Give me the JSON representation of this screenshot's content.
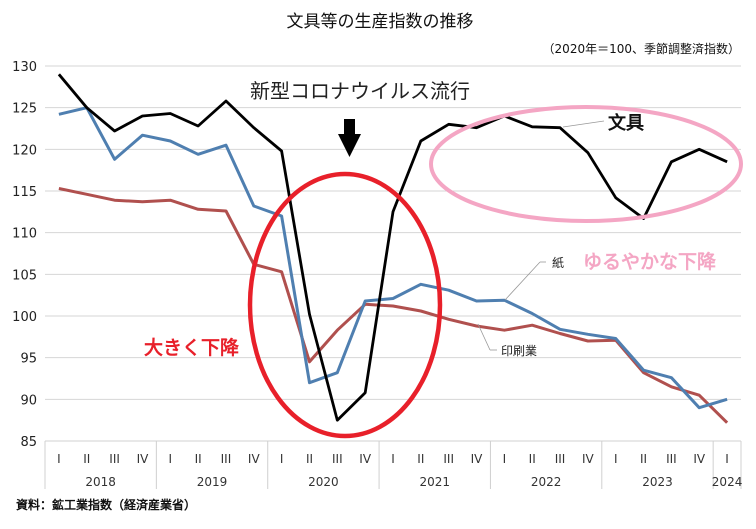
{
  "chart_data": {
    "type": "line",
    "title": "文具等の生産指数の推移",
    "subtitle": "（2020年＝100、季節調整済指数）",
    "xlabel": "",
    "ylabel": "",
    "ylim": [
      85,
      130
    ],
    "yticks": [
      130,
      125,
      120,
      115,
      110,
      105,
      100,
      95,
      90,
      85
    ],
    "grid": true,
    "quarters": [
      "I",
      "II",
      "III",
      "IV",
      "I",
      "II",
      "III",
      "IV",
      "I",
      "II",
      "III",
      "IV",
      "I",
      "II",
      "III",
      "IV",
      "I",
      "II",
      "III",
      "IV",
      "I",
      "II",
      "III",
      "IV",
      "I"
    ],
    "years": [
      {
        "label": "2018",
        "count": 4
      },
      {
        "label": "2019",
        "count": 4
      },
      {
        "label": "2020",
        "count": 4
      },
      {
        "label": "2021",
        "count": 4
      },
      {
        "label": "2022",
        "count": 4
      },
      {
        "label": "2023",
        "count": 4
      },
      {
        "label": "2024",
        "count": 1
      }
    ],
    "series": [
      {
        "name": "文具",
        "color": "#000000",
        "values": [
          129.0,
          125.0,
          122.2,
          124.0,
          124.3,
          122.8,
          125.8,
          122.6,
          119.8,
          100.2,
          87.5,
          90.8,
          112.5,
          121.0,
          123.0,
          122.6,
          124.0,
          122.7,
          122.6,
          119.6,
          114.2,
          111.7,
          118.5,
          120.0,
          118.5
        ]
      },
      {
        "name": "紙",
        "color": "#4f7fb0",
        "values": [
          124.2,
          125.0,
          118.8,
          121.7,
          121.0,
          119.4,
          120.5,
          113.2,
          112.0,
          92.0,
          93.2,
          101.8,
          102.1,
          103.8,
          103.1,
          101.8,
          101.9,
          100.3,
          98.4,
          97.8,
          97.3,
          93.5,
          92.6,
          89.0,
          90.0
        ]
      },
      {
        "name": "印刷業",
        "color": "#b0504e",
        "values": [
          115.3,
          114.6,
          113.9,
          113.7,
          113.9,
          112.8,
          112.6,
          106.2,
          105.3,
          94.5,
          98.3,
          101.4,
          101.2,
          100.6,
          99.6,
          98.8,
          98.3,
          98.9,
          97.9,
          97.0,
          97.1,
          93.2,
          91.5,
          90.5,
          87.2
        ]
      }
    ],
    "annotations": {
      "covid": "新型コロナウイルス流行",
      "big_drop": "大きく下降",
      "gentle_drop": "ゆるやかな下降",
      "big_drop_color": "#e8202a",
      "gentle_drop_color": "#f4a6c4"
    },
    "source": "資料：鉱工業指数（経済産業省）"
  }
}
